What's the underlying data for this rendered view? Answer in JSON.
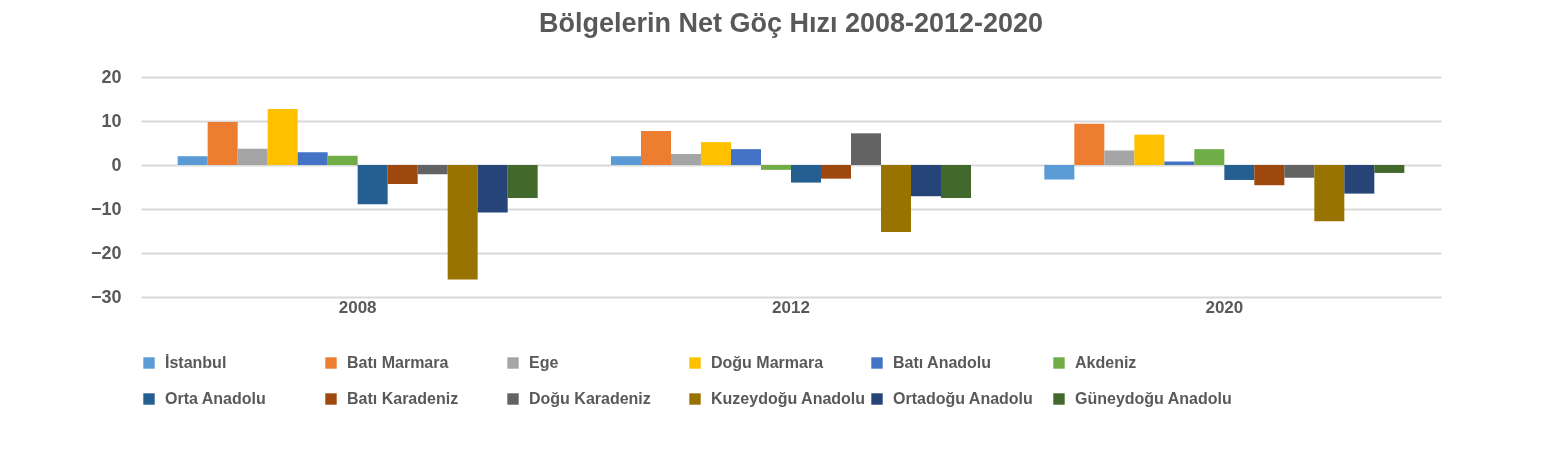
{
  "chart_data": {
    "type": "bar",
    "title": "Bölgelerin Net Göç Hızı 2008-2012-2020",
    "categories": [
      "2008",
      "2012",
      "2020"
    ],
    "series": [
      {
        "name": "İstanbul",
        "color": "#5b9bd5",
        "values": [
          2,
          2,
          -3.3
        ]
      },
      {
        "name": "Batı Marmara",
        "color": "#ed7d31",
        "values": [
          9.8,
          7.7,
          9.4
        ]
      },
      {
        "name": "Ege",
        "color": "#a5a5a5",
        "values": [
          3.7,
          2.5,
          3.3
        ]
      },
      {
        "name": "Doğu Marmara",
        "color": "#ffc000",
        "values": [
          12.7,
          5.2,
          6.9
        ]
      },
      {
        "name": "Batı Anadolu",
        "color": "#4472c4",
        "values": [
          2.9,
          3.6,
          0.8
        ]
      },
      {
        "name": "Akdeniz",
        "color": "#70ad47",
        "values": [
          2.1,
          -1.1,
          3.6
        ]
      },
      {
        "name": "Orta Anadolu",
        "color": "#255e91",
        "values": [
          -8.9,
          -4,
          -3.4
        ]
      },
      {
        "name": "Batı Karadeniz",
        "color": "#9e480e",
        "values": [
          -4.3,
          -3.1,
          -4.6
        ]
      },
      {
        "name": "Doğu Karadeniz",
        "color": "#636363",
        "values": [
          -2.1,
          7.2,
          -2.9
        ]
      },
      {
        "name": "Kuzeydoğu Anadolu",
        "color": "#997300",
        "values": [
          -26,
          -15.2,
          -12.8
        ]
      },
      {
        "name": "Ortadoğu Anadolu",
        "color": "#264478",
        "values": [
          -10.8,
          -7.1,
          -6.5
        ]
      },
      {
        "name": "Güneydoğu Anadolu",
        "color": "#43682b",
        "values": [
          -7.5,
          -7.5,
          -1.8
        ]
      }
    ],
    "ylim": [
      -30,
      20
    ],
    "yticks": [
      -30,
      -20,
      -10,
      0,
      10,
      20
    ],
    "grid": "y",
    "legend": "bottom"
  }
}
